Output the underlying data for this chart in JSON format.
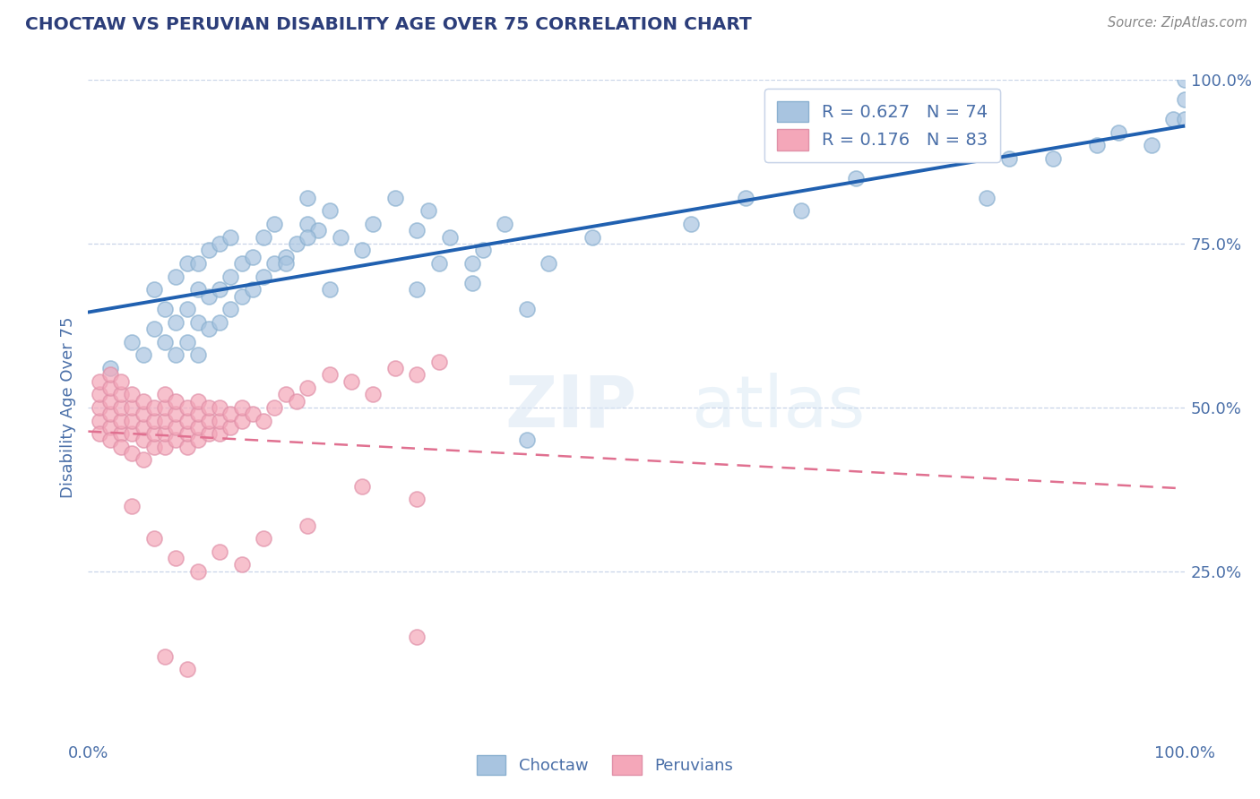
{
  "title": "CHOCTAW VS PERUVIAN DISABILITY AGE OVER 75 CORRELATION CHART",
  "source": "Source: ZipAtlas.com",
  "ylabel": "Disability Age Over 75",
  "xlim": [
    0.0,
    1.0
  ],
  "ylim": [
    0.0,
    1.0
  ],
  "legend_r1": "0.627",
  "legend_n1": "74",
  "legend_r2": "0.176",
  "legend_n2": "83",
  "choctaw_color": "#a8c4e0",
  "peruvian_color": "#f4a7b9",
  "choctaw_line_color": "#2060b0",
  "peruvian_line_color": "#e07090",
  "title_color": "#2c3e7a",
  "axis_color": "#4a6fa8",
  "choctaw_x": [
    0.02,
    0.04,
    0.05,
    0.06,
    0.06,
    0.07,
    0.07,
    0.08,
    0.08,
    0.08,
    0.09,
    0.09,
    0.09,
    0.1,
    0.1,
    0.1,
    0.1,
    0.11,
    0.11,
    0.11,
    0.12,
    0.12,
    0.12,
    0.13,
    0.13,
    0.13,
    0.14,
    0.14,
    0.15,
    0.15,
    0.16,
    0.16,
    0.17,
    0.17,
    0.18,
    0.19,
    0.2,
    0.2,
    0.21,
    0.22,
    0.23,
    0.25,
    0.26,
    0.28,
    0.3,
    0.31,
    0.32,
    0.33,
    0.35,
    0.36,
    0.38,
    0.4,
    0.42,
    0.46,
    0.3,
    0.35,
    0.4,
    0.18,
    0.2,
    0.22,
    0.82,
    0.84,
    0.88,
    0.92,
    0.94,
    0.97,
    0.99,
    1.0,
    1.0,
    1.0,
    0.55,
    0.6,
    0.65,
    0.7
  ],
  "choctaw_y": [
    0.56,
    0.6,
    0.58,
    0.62,
    0.68,
    0.6,
    0.65,
    0.58,
    0.63,
    0.7,
    0.6,
    0.65,
    0.72,
    0.58,
    0.63,
    0.68,
    0.72,
    0.62,
    0.67,
    0.74,
    0.63,
    0.68,
    0.75,
    0.65,
    0.7,
    0.76,
    0.67,
    0.72,
    0.68,
    0.73,
    0.7,
    0.76,
    0.72,
    0.78,
    0.73,
    0.75,
    0.78,
    0.82,
    0.77,
    0.8,
    0.76,
    0.74,
    0.78,
    0.82,
    0.77,
    0.8,
    0.72,
    0.76,
    0.69,
    0.74,
    0.78,
    0.45,
    0.72,
    0.76,
    0.68,
    0.72,
    0.65,
    0.72,
    0.76,
    0.68,
    0.82,
    0.88,
    0.88,
    0.9,
    0.92,
    0.9,
    0.94,
    0.94,
    0.97,
    1.0,
    0.78,
    0.82,
    0.8,
    0.85
  ],
  "peruvian_x": [
    0.01,
    0.01,
    0.01,
    0.01,
    0.01,
    0.02,
    0.02,
    0.02,
    0.02,
    0.02,
    0.02,
    0.03,
    0.03,
    0.03,
    0.03,
    0.03,
    0.03,
    0.04,
    0.04,
    0.04,
    0.04,
    0.04,
    0.05,
    0.05,
    0.05,
    0.05,
    0.05,
    0.06,
    0.06,
    0.06,
    0.06,
    0.07,
    0.07,
    0.07,
    0.07,
    0.07,
    0.08,
    0.08,
    0.08,
    0.08,
    0.09,
    0.09,
    0.09,
    0.09,
    0.1,
    0.1,
    0.1,
    0.1,
    0.11,
    0.11,
    0.11,
    0.12,
    0.12,
    0.12,
    0.13,
    0.13,
    0.14,
    0.14,
    0.15,
    0.16,
    0.17,
    0.18,
    0.19,
    0.2,
    0.22,
    0.24,
    0.26,
    0.28,
    0.3,
    0.32,
    0.04,
    0.06,
    0.08,
    0.1,
    0.12,
    0.14,
    0.16,
    0.2,
    0.25,
    0.3,
    0.07,
    0.09,
    0.3
  ],
  "peruvian_y": [
    0.48,
    0.5,
    0.52,
    0.54,
    0.46,
    0.47,
    0.49,
    0.51,
    0.53,
    0.45,
    0.55,
    0.46,
    0.48,
    0.5,
    0.52,
    0.54,
    0.44,
    0.46,
    0.48,
    0.5,
    0.52,
    0.43,
    0.45,
    0.47,
    0.49,
    0.51,
    0.42,
    0.44,
    0.46,
    0.48,
    0.5,
    0.44,
    0.46,
    0.48,
    0.5,
    0.52,
    0.45,
    0.47,
    0.49,
    0.51,
    0.44,
    0.46,
    0.48,
    0.5,
    0.45,
    0.47,
    0.49,
    0.51,
    0.46,
    0.48,
    0.5,
    0.46,
    0.48,
    0.5,
    0.47,
    0.49,
    0.48,
    0.5,
    0.49,
    0.48,
    0.5,
    0.52,
    0.51,
    0.53,
    0.55,
    0.54,
    0.52,
    0.56,
    0.55,
    0.57,
    0.35,
    0.3,
    0.27,
    0.25,
    0.28,
    0.26,
    0.3,
    0.32,
    0.38,
    0.36,
    0.12,
    0.1,
    0.15
  ]
}
